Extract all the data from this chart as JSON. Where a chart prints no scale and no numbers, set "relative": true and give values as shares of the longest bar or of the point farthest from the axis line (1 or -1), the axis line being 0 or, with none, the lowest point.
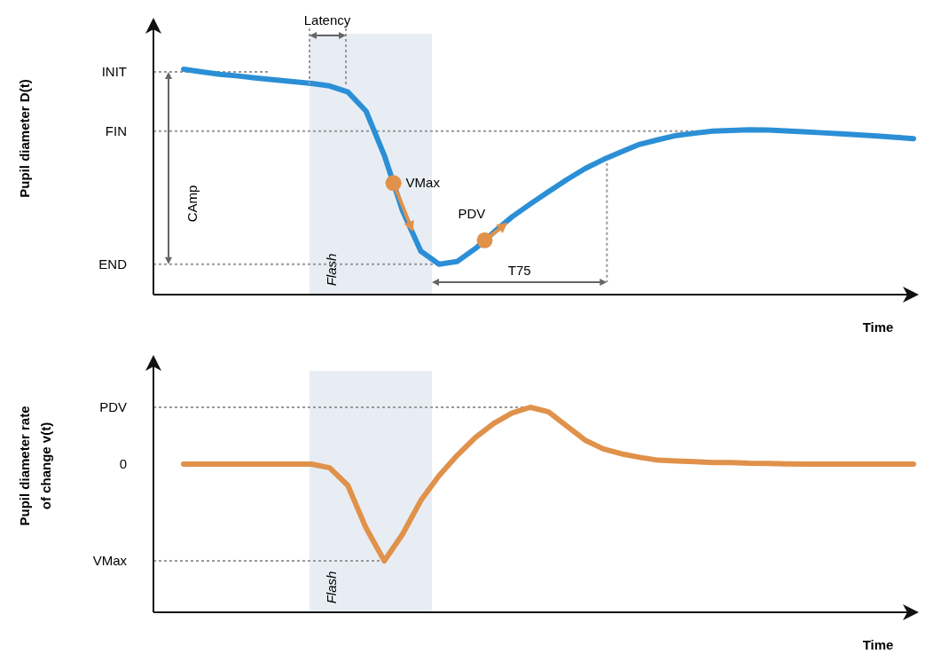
{
  "chart_data": [
    {
      "type": "line",
      "relative": true,
      "xlabel": "Time",
      "ylabel": "Pupil diameter  D(t)",
      "line_style": "solid",
      "categories": [
        null,
        null,
        null,
        null,
        null,
        null,
        null,
        null,
        null,
        null,
        null,
        null,
        null,
        null,
        null,
        null,
        null,
        null,
        null,
        null,
        null,
        null,
        null,
        null,
        null,
        null,
        null,
        null,
        null,
        null,
        null,
        null,
        null,
        null,
        null,
        null,
        null,
        null,
        null,
        null,
        null
      ],
      "series": [
        {
          "color": "#2b8fd6",
          "values": [
            1.0,
            0.988,
            0.977,
            0.97,
            0.961,
            0.953,
            0.945,
            0.937,
            0.926,
            0.899,
            0.814,
            0.618,
            0.372,
            0.193,
            0.135,
            0.147,
            0.205,
            0.277,
            0.345,
            0.402,
            0.457,
            0.51,
            0.559,
            0.599,
            0.634,
            0.667,
            0.687,
            0.706,
            0.716,
            0.725,
            0.728,
            0.731,
            0.73,
            0.726,
            0.722,
            0.718,
            0.714,
            0.709,
            0.704,
            0.698,
            0.692
          ]
        }
      ],
      "ref_lines": [
        {
          "axis": "y",
          "value": 0.988,
          "label": "INIT",
          "line_style": "dotted",
          "color": "#999999"
        },
        {
          "axis": "y",
          "value": 0.725,
          "label": "FIN",
          "line_style": "dotted",
          "color": "#999999"
        },
        {
          "axis": "y",
          "value": 0.135,
          "label": "END",
          "line_style": "dotted",
          "color": "#999999"
        }
      ],
      "annotations": [
        "Latency",
        "CAmp",
        "T75",
        "VMax",
        "PDV",
        "Flash"
      ]
    },
    {
      "type": "line",
      "relative": true,
      "xlabel": "Time",
      "ylabel": "Pupil  diameter  rate\nof change  v(t)",
      "line_style": "solid",
      "categories": [
        null,
        null,
        null,
        null,
        null,
        null,
        null,
        null,
        null,
        null,
        null,
        null,
        null,
        null,
        null,
        null,
        null,
        null,
        null,
        null,
        null,
        null,
        null,
        null,
        null,
        null,
        null,
        null,
        null,
        null,
        null,
        null,
        null,
        null,
        null,
        null,
        null,
        null,
        null,
        null,
        null
      ],
      "series": [
        {
          "color": "#e0914a",
          "values": [
            0.723,
            0.723,
            0.723,
            0.723,
            0.723,
            0.723,
            0.723,
            0.723,
            0.705,
            0.619,
            0.411,
            0.251,
            0.381,
            0.545,
            0.667,
            0.766,
            0.853,
            0.922,
            0.972,
            1.0,
            0.978,
            0.909,
            0.84,
            0.797,
            0.773,
            0.756,
            0.742,
            0.738,
            0.735,
            0.731,
            0.73,
            0.727,
            0.726,
            0.724,
            0.723,
            0.723,
            0.723,
            0.723,
            0.723,
            0.723,
            0.723
          ]
        }
      ],
      "ref_lines": [
        {
          "axis": "y",
          "value": 1.0,
          "label": "PDV",
          "line_style": "dotted",
          "color": "#999999"
        },
        {
          "axis": "y",
          "value": 0.251,
          "label": "VMax",
          "line_style": "dotted",
          "color": "#999999"
        }
      ],
      "annotations": [
        "Flash",
        "0"
      ]
    }
  ]
}
